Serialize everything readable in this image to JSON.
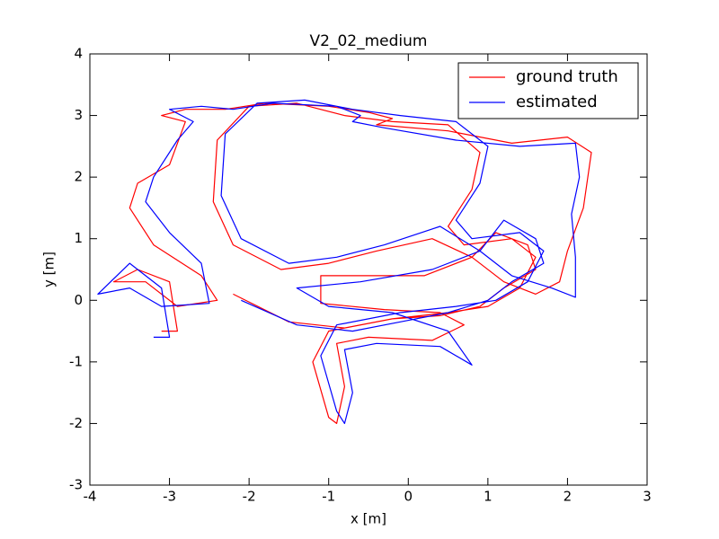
{
  "chart_data": {
    "type": "line",
    "title": "V2_02_medium",
    "x_label": "x [m]",
    "y_label": "y [m]",
    "xlim": [
      -4,
      3
    ],
    "ylim": [
      -3,
      4
    ],
    "xticks": [
      -4,
      -3,
      -2,
      -1,
      0,
      1,
      2,
      3
    ],
    "yticks": [
      -3,
      -2,
      -1,
      0,
      1,
      2,
      3,
      4
    ],
    "legend": "upper right",
    "series": [
      {
        "name": "ground truth",
        "color": "#ff0000",
        "x": [
          -3.1,
          -2.9,
          -3.0,
          -3.4,
          -3.7,
          -3.3,
          -2.9,
          -2.4,
          -2.6,
          -3.2,
          -3.5,
          -3.4,
          -3.0,
          -2.8,
          -3.1,
          -2.8,
          -2.3,
          -1.8,
          -1.0,
          -0.5,
          -0.2,
          -0.4,
          0.5,
          1.3,
          2.0,
          2.3,
          2.2,
          2.0,
          1.9,
          1.6,
          1.2,
          0.8,
          0.3,
          -0.4,
          -1.0,
          -1.6,
          -2.2,
          -2.45,
          -2.4,
          -2.0,
          -1.4,
          -0.8,
          -0.2,
          0.5,
          0.9,
          0.8,
          0.5,
          0.7,
          1.3,
          1.6,
          1.4,
          1.0,
          0.5,
          -0.2,
          -1.0,
          -1.2,
          -1.0,
          -0.9,
          -0.8,
          -0.9,
          -0.5,
          0.3,
          0.7,
          0.4,
          -0.3,
          -1.1,
          -1.1,
          -0.5,
          0.2,
          0.8,
          1.1,
          1.5,
          1.6,
          1.2,
          0.9,
          0.4,
          -0.2,
          -0.8,
          -1.5,
          -2.2
        ],
        "values": [
          -0.5,
          -0.5,
          0.3,
          0.5,
          0.3,
          0.3,
          -0.1,
          0.0,
          0.4,
          0.9,
          1.5,
          1.9,
          2.2,
          2.9,
          3.0,
          3.1,
          3.1,
          3.2,
          3.15,
          3.05,
          2.95,
          2.85,
          2.75,
          2.55,
          2.65,
          2.4,
          1.5,
          0.8,
          0.3,
          0.1,
          0.3,
          0.7,
          1.0,
          0.8,
          0.6,
          0.5,
          0.9,
          1.6,
          2.6,
          3.15,
          3.2,
          3.0,
          2.9,
          2.85,
          2.4,
          1.8,
          1.2,
          0.9,
          1.0,
          0.7,
          0.2,
          -0.1,
          -0.2,
          -0.3,
          -0.5,
          -1.0,
          -1.9,
          -2.0,
          -1.4,
          -0.7,
          -0.6,
          -0.65,
          -0.4,
          -0.2,
          -0.15,
          -0.05,
          0.4,
          0.4,
          0.4,
          0.7,
          1.1,
          0.9,
          0.5,
          0.2,
          -0.1,
          -0.25,
          -0.3,
          -0.45,
          -0.35,
          0.1
        ]
      },
      {
        "name": "estimated",
        "color": "#0000ff",
        "x": [
          -3.2,
          -3.0,
          -3.1,
          -3.5,
          -3.9,
          -3.5,
          -3.1,
          -2.5,
          -2.6,
          -3.0,
          -3.3,
          -3.2,
          -2.9,
          -2.7,
          -3.0,
          -2.6,
          -2.2,
          -1.7,
          -0.9,
          -0.6,
          -0.7,
          -0.3,
          0.6,
          1.4,
          2.1,
          2.15,
          2.05,
          2.1,
          2.1,
          1.8,
          1.3,
          0.9,
          0.4,
          -0.3,
          -0.9,
          -1.5,
          -2.1,
          -2.35,
          -2.3,
          -1.9,
          -1.3,
          -0.7,
          -0.1,
          0.6,
          1.0,
          0.9,
          0.6,
          0.8,
          1.4,
          1.7,
          1.5,
          1.1,
          0.6,
          -0.1,
          -0.9,
          -1.1,
          -0.9,
          -0.8,
          -0.7,
          -0.8,
          -0.4,
          0.4,
          0.8,
          0.5,
          -0.2,
          -1.0,
          -1.4,
          -0.6,
          0.3,
          0.9,
          1.2,
          1.6,
          1.7,
          1.3,
          1.0,
          0.5,
          -0.1,
          -0.7,
          -1.4,
          -2.1
        ],
        "values": [
          -0.6,
          -0.6,
          0.2,
          0.6,
          0.1,
          0.2,
          -0.1,
          -0.05,
          0.6,
          1.1,
          1.6,
          2.0,
          2.6,
          2.9,
          3.1,
          3.15,
          3.1,
          3.2,
          3.15,
          3.0,
          2.9,
          2.8,
          2.6,
          2.5,
          2.55,
          2.0,
          1.4,
          0.7,
          0.05,
          0.2,
          0.4,
          0.8,
          1.2,
          0.9,
          0.7,
          0.6,
          1.0,
          1.7,
          2.7,
          3.2,
          3.25,
          3.1,
          3.0,
          2.9,
          2.5,
          1.9,
          1.3,
          1.0,
          1.1,
          0.8,
          0.3,
          0.0,
          -0.1,
          -0.2,
          -0.4,
          -0.9,
          -1.8,
          -2.0,
          -1.5,
          -0.8,
          -0.7,
          -0.75,
          -1.05,
          -0.5,
          -0.2,
          -0.1,
          0.2,
          0.3,
          0.5,
          0.8,
          1.3,
          1.0,
          0.6,
          0.3,
          0.0,
          -0.2,
          -0.35,
          -0.5,
          -0.4,
          0.0
        ]
      }
    ]
  }
}
